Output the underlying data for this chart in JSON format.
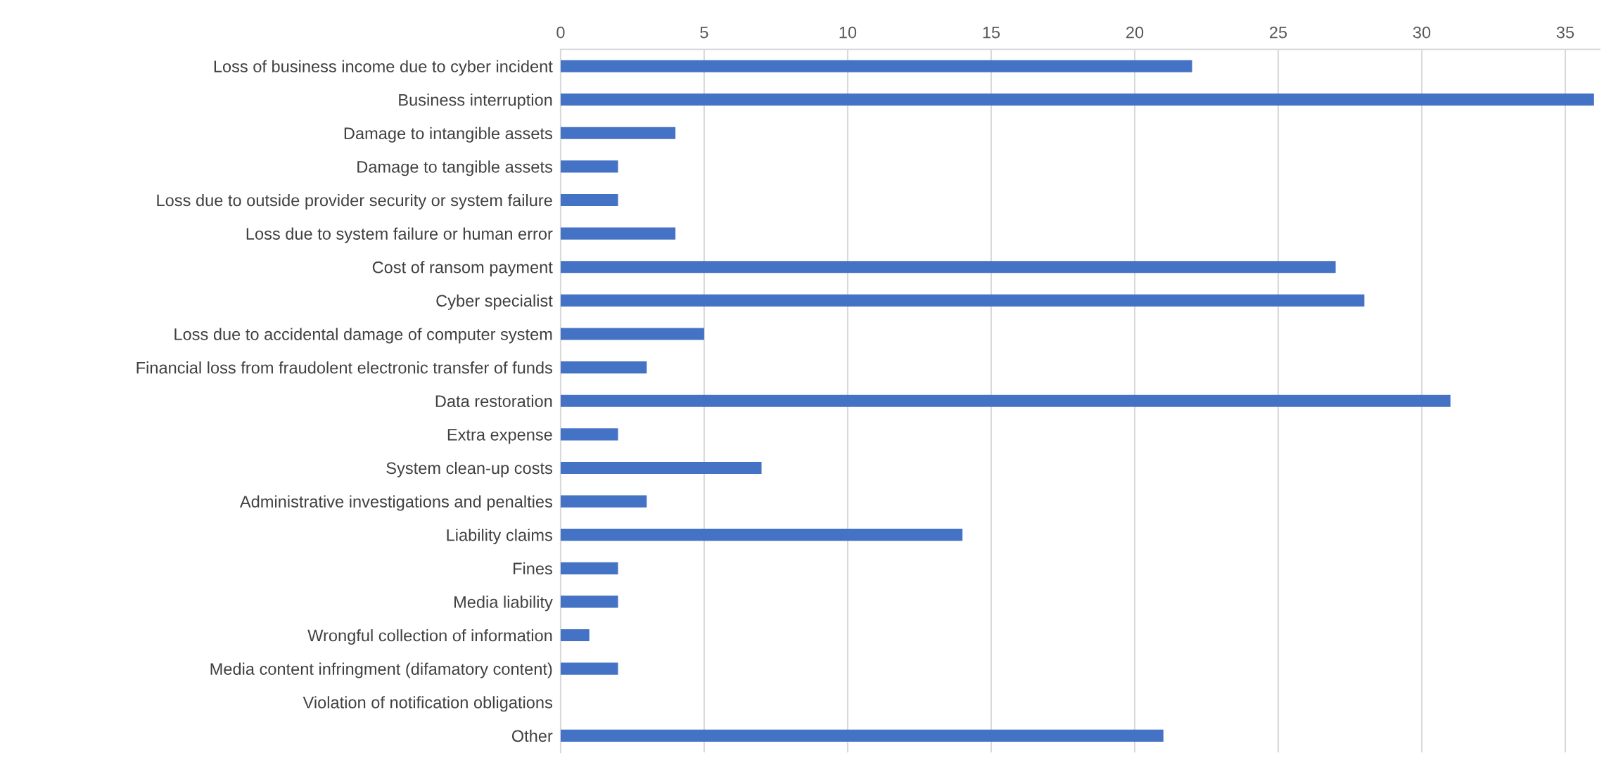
{
  "chart_data": {
    "type": "bar",
    "orientation": "horizontal",
    "categories": [
      "Loss of business income due to cyber incident",
      "Business interruption",
      "Damage to intangible assets",
      "Damage to tangible assets",
      "Loss due to outside provider security or system failure",
      "Loss due to system failure or human error",
      "Cost of ransom payment",
      "Cyber specialist",
      "Loss due to accidental damage of computer system",
      "Financial loss from fraudolent electronic transfer of funds",
      "Data restoration",
      "Extra expense",
      "System clean-up costs",
      "Administrative investigations and penalties",
      "Liability claims",
      "Fines",
      "Media liability",
      "Wrongful collection of information",
      "Media content infringment (difamatory content)",
      "Violation of notification obligations",
      "Other"
    ],
    "values": [
      22,
      36,
      4,
      2,
      2,
      4,
      27,
      28,
      5,
      3,
      31,
      2,
      7,
      3,
      14,
      2,
      2,
      1,
      2,
      0,
      21
    ],
    "color": "#4472c4",
    "xlim": [
      0,
      36.2
    ],
    "xticks": [
      0,
      5,
      10,
      15,
      20,
      25,
      30,
      35
    ],
    "grid": "x"
  }
}
